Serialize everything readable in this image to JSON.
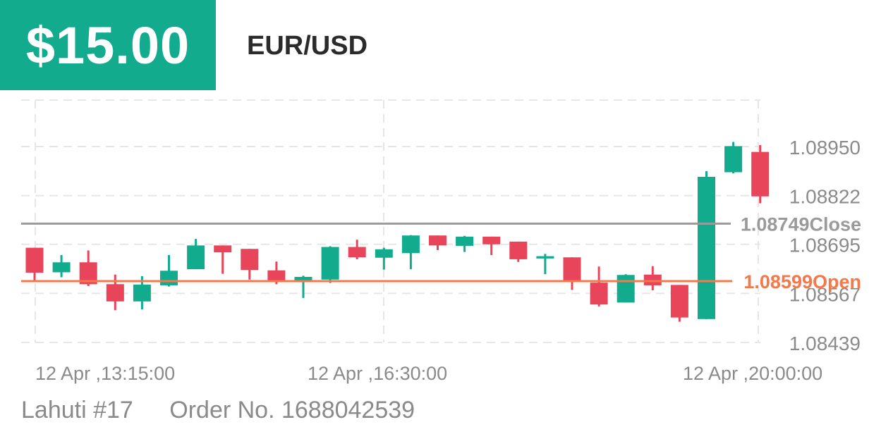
{
  "header": {
    "profit": "$15.00",
    "pair": "EUR/USD"
  },
  "footer": {
    "account": "Lahuti #17",
    "order": "Order No. 1688042539"
  },
  "colors": {
    "profit_bg": "#12ab8e",
    "up": "#12ab8e",
    "down": "#e8445a",
    "open_line": "#f4784a",
    "close_line": "#9a9a9a",
    "grid": "#e6e6e6",
    "axis_text": "#8a8a8a"
  },
  "chart_data": {
    "type": "candlestick",
    "y_ticks": [
      "1.08950",
      "1.08822",
      "1.08695",
      "1.08567",
      "1.08439"
    ],
    "ylim": [
      1.08439,
      1.0895
    ],
    "x_tick_labels": [
      "12 Apr ,13:15:00",
      "12 Apr ,16:30:00",
      "12 Apr ,20:00:00"
    ],
    "open_price": 1.08599,
    "open_label": "1.08599Open",
    "close_price": 1.08749,
    "close_label": "1.08749Close",
    "candles": [
      {
        "o": 1.08686,
        "h": 1.08686,
        "l": 1.086,
        "c": 1.08621
      },
      {
        "o": 1.08622,
        "h": 1.08667,
        "l": 1.08609,
        "c": 1.08648
      },
      {
        "o": 1.08648,
        "h": 1.08679,
        "l": 1.08586,
        "c": 1.08591
      },
      {
        "o": 1.08591,
        "h": 1.08616,
        "l": 1.08523,
        "c": 1.08546
      },
      {
        "o": 1.08546,
        "h": 1.08612,
        "l": 1.08525,
        "c": 1.0859
      },
      {
        "o": 1.08588,
        "h": 1.08667,
        "l": 1.08585,
        "c": 1.08626
      },
      {
        "o": 1.0863,
        "h": 1.08709,
        "l": 1.0863,
        "c": 1.08692
      },
      {
        "o": 1.08692,
        "h": 1.08692,
        "l": 1.08618,
        "c": 1.08674
      },
      {
        "o": 1.08683,
        "h": 1.08683,
        "l": 1.08603,
        "c": 1.08628
      },
      {
        "o": 1.08627,
        "h": 1.0865,
        "l": 1.08591,
        "c": 1.08601
      },
      {
        "o": 1.08601,
        "h": 1.08613,
        "l": 1.08555,
        "c": 1.0861
      },
      {
        "o": 1.08603,
        "h": 1.0869,
        "l": 1.08594,
        "c": 1.08688
      },
      {
        "o": 1.08688,
        "h": 1.08707,
        "l": 1.08656,
        "c": 1.08661
      },
      {
        "o": 1.0866,
        "h": 1.08686,
        "l": 1.08629,
        "c": 1.08682
      },
      {
        "o": 1.08672,
        "h": 1.08719,
        "l": 1.0863,
        "c": 1.08718
      },
      {
        "o": 1.08718,
        "h": 1.08718,
        "l": 1.0868,
        "c": 1.08692
      },
      {
        "o": 1.08691,
        "h": 1.08717,
        "l": 1.08675,
        "c": 1.08715
      },
      {
        "o": 1.08715,
        "h": 1.08715,
        "l": 1.08667,
        "c": 1.08695
      },
      {
        "o": 1.08702,
        "h": 1.08702,
        "l": 1.08649,
        "c": 1.08656
      },
      {
        "o": 1.08658,
        "h": 1.0867,
        "l": 1.08617,
        "c": 1.08664
      },
      {
        "o": 1.08661,
        "h": 1.08661,
        "l": 1.08576,
        "c": 1.086
      },
      {
        "o": 1.08595,
        "h": 1.08637,
        "l": 1.08533,
        "c": 1.08538
      },
      {
        "o": 1.08543,
        "h": 1.08617,
        "l": 1.08543,
        "c": 1.08615
      },
      {
        "o": 1.08616,
        "h": 1.08638,
        "l": 1.08575,
        "c": 1.08588
      },
      {
        "o": 1.08589,
        "h": 1.08589,
        "l": 1.08493,
        "c": 1.08504
      },
      {
        "o": 1.085,
        "h": 1.08886,
        "l": 1.085,
        "c": 1.08871
      },
      {
        "o": 1.08883,
        "h": 1.08962,
        "l": 1.0888,
        "c": 1.08951
      },
      {
        "o": 1.08936,
        "h": 1.08954,
        "l": 1.08802,
        "c": 1.0882
      }
    ]
  }
}
